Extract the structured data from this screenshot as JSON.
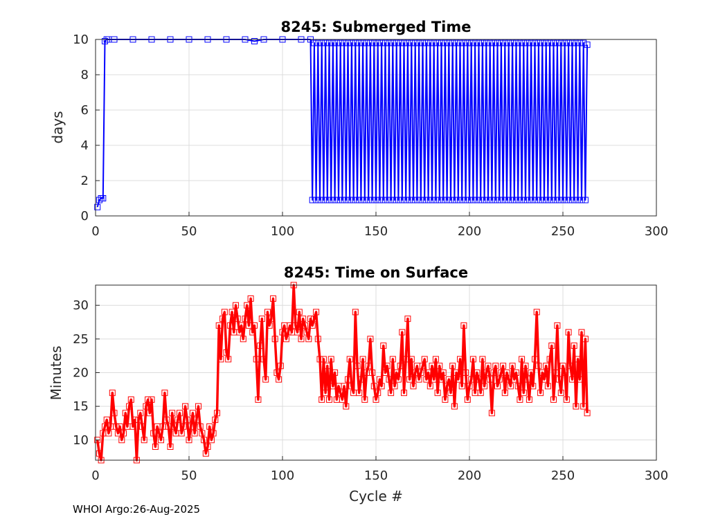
{
  "footer": "WHOI Argo:26-Aug-2025",
  "chart_data": [
    {
      "type": "line",
      "title": "8245: Submerged Time",
      "xlabel": "",
      "ylabel": "days",
      "xlim": [
        0,
        300
      ],
      "ylim": [
        0,
        10
      ],
      "xticks": [
        0,
        50,
        100,
        150,
        200,
        250,
        300
      ],
      "yticks": [
        0,
        2,
        4,
        6,
        8,
        10
      ],
      "grid": true,
      "marker": "square",
      "color": "#0000ff",
      "series": [
        {
          "x": [
            1,
            2,
            3,
            4,
            5,
            6,
            7,
            10,
            20,
            30,
            40,
            50,
            60,
            70,
            80,
            85,
            90,
            100,
            110,
            115
          ],
          "values": [
            0.5,
            0.9,
            1.0,
            1.0,
            9.9,
            10.0,
            10.0,
            10.0,
            10.0,
            10.0,
            10.0,
            10.0,
            10.0,
            10.0,
            10.0,
            9.9,
            10.0,
            10.0,
            10.0,
            10.0
          ]
        }
      ],
      "alternating_segment": {
        "x_start": 116,
        "x_end": 263,
        "low": 0.9,
        "high": 9.8,
        "final": 9.7
      }
    },
    {
      "type": "line",
      "title": "8245: Time on Surface",
      "xlabel": "Cycle #",
      "ylabel": "Minutes",
      "xlim": [
        0,
        300
      ],
      "ylim": [
        7,
        33
      ],
      "xticks": [
        0,
        50,
        100,
        150,
        200,
        250,
        300
      ],
      "yticks": [
        10,
        15,
        20,
        25,
        30
      ],
      "grid": true,
      "marker": "square",
      "color": "#ff0000",
      "series": [
        {
          "x": [
            1,
            2,
            3,
            4,
            5,
            6,
            7,
            8,
            9,
            10,
            11,
            12,
            13,
            14,
            15,
            16,
            17,
            18,
            19,
            20,
            21,
            22,
            23,
            24,
            25,
            26,
            27,
            28,
            29,
            30,
            31,
            32,
            33,
            34,
            35,
            36,
            37,
            38,
            39,
            40,
            41,
            42,
            43,
            44,
            45,
            46,
            47,
            48,
            49,
            50,
            51,
            52,
            53,
            54,
            55,
            56,
            57,
            58,
            59,
            60,
            61,
            62,
            63,
            64,
            65,
            66,
            67,
            68,
            69,
            70,
            71,
            72,
            73,
            74,
            75,
            76,
            77,
            78,
            79,
            80,
            81,
            82,
            83,
            84,
            85,
            86,
            87,
            88,
            89,
            90,
            91,
            92,
            93,
            94,
            95,
            96,
            97,
            98,
            99,
            100,
            101,
            102,
            103,
            104,
            105,
            106,
            107,
            108,
            109,
            110,
            111,
            112,
            113,
            114,
            115,
            116,
            117,
            118,
            119,
            120,
            121,
            122,
            123,
            124,
            125,
            126,
            127,
            128,
            129,
            130,
            131,
            132,
            133,
            134,
            135,
            136,
            137,
            138,
            139,
            140,
            141,
            142,
            143,
            144,
            145,
            146,
            147,
            148,
            149,
            150,
            151,
            152,
            153,
            154,
            155,
            156,
            157,
            158,
            159,
            160,
            161,
            162,
            163,
            164,
            165,
            166,
            167,
            168,
            169,
            170,
            171,
            172,
            173,
            174,
            175,
            176,
            177,
            178,
            179,
            180,
            181,
            182,
            183,
            184,
            185,
            186,
            187,
            188,
            189,
            190,
            191,
            192,
            193,
            194,
            195,
            196,
            197,
            198,
            199,
            200,
            201,
            202,
            203,
            204,
            205,
            206,
            207,
            208,
            209,
            210,
            211,
            212,
            213,
            214,
            215,
            216,
            217,
            218,
            219,
            220,
            221,
            222,
            223,
            224,
            225,
            226,
            227,
            228,
            229,
            230,
            231,
            232,
            233,
            234,
            235,
            236,
            237,
            238,
            239,
            240,
            241,
            242,
            243,
            244,
            245,
            246,
            247,
            248,
            249,
            250,
            251,
            252,
            253,
            254,
            255,
            256,
            257,
            258,
            259,
            260,
            261,
            262,
            263
          ],
          "values": [
            10,
            8,
            7,
            11,
            12,
            13,
            11,
            12,
            17,
            14,
            12,
            11,
            12,
            10,
            11,
            14,
            12,
            15,
            16,
            12,
            13,
            7,
            13,
            14,
            12,
            10,
            15,
            16,
            14,
            16,
            11,
            9,
            12,
            11,
            10,
            12,
            17,
            13,
            12,
            9,
            14,
            12,
            11,
            13,
            14,
            11,
            12,
            15,
            13,
            10,
            12,
            14,
            11,
            13,
            15,
            12,
            11,
            10,
            8,
            9,
            12,
            10,
            11,
            13,
            14,
            27,
            22,
            28,
            29,
            23,
            22,
            27,
            29,
            26,
            30,
            28,
            26,
            27,
            25,
            28,
            30,
            27,
            31,
            26,
            27,
            22,
            16,
            24,
            28,
            22,
            19,
            29,
            27,
            28,
            31,
            25,
            20,
            19,
            21,
            26,
            27,
            25,
            26,
            27,
            26,
            33,
            27,
            26,
            29,
            25,
            28,
            27,
            26,
            25,
            28,
            27,
            28,
            29,
            25,
            22,
            16,
            22,
            17,
            21,
            16,
            22,
            18,
            20,
            16,
            18,
            17,
            16,
            18,
            15,
            19,
            22,
            18,
            17,
            29,
            21,
            17,
            19,
            22,
            16,
            20,
            21,
            25,
            20,
            18,
            16,
            17,
            19,
            18,
            24,
            20,
            21,
            19,
            17,
            22,
            18,
            20,
            19,
            21,
            26,
            17,
            22,
            28,
            19,
            22,
            18,
            20,
            21,
            19,
            20,
            21,
            22,
            19,
            20,
            18,
            21,
            19,
            22,
            17,
            21,
            19,
            20,
            16,
            18,
            19,
            17,
            21,
            15,
            20,
            19,
            22,
            18,
            27,
            20,
            16,
            18,
            19,
            22,
            17,
            20,
            19,
            17,
            22,
            18,
            20,
            21,
            19,
            14,
            20,
            21,
            18,
            19,
            20,
            21,
            17,
            20,
            19,
            18,
            21,
            19,
            20,
            18,
            16,
            22,
            17,
            21,
            19,
            16,
            20,
            18,
            22,
            29,
            21,
            17,
            20,
            19,
            21,
            18,
            22,
            24,
            16,
            20,
            27,
            19,
            17,
            21,
            20,
            16,
            26,
            21,
            19,
            24,
            15,
            22,
            19,
            26,
            15,
            25,
            14
          ]
        }
      ]
    }
  ]
}
